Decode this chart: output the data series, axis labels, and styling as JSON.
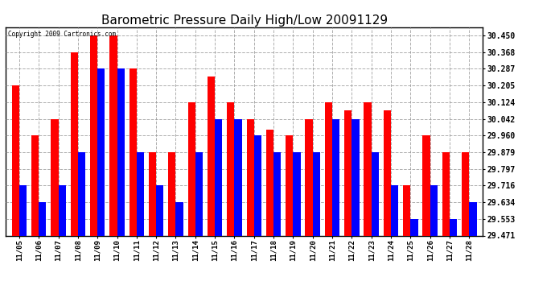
{
  "title": "Barometric Pressure Daily High/Low 20091129",
  "copyright_text": "Copyright 2009 Cartronics.com",
  "dates": [
    "11/05",
    "11/06",
    "11/07",
    "11/08",
    "11/09",
    "11/10",
    "11/11",
    "11/12",
    "11/13",
    "11/14",
    "11/15",
    "11/16",
    "11/17",
    "11/18",
    "11/19",
    "11/20",
    "11/21",
    "11/22",
    "11/23",
    "11/24",
    "11/25",
    "11/26",
    "11/27",
    "11/28"
  ],
  "highs": [
    30.205,
    29.96,
    30.042,
    30.368,
    30.45,
    30.45,
    30.287,
    29.879,
    29.879,
    30.124,
    30.247,
    30.124,
    30.042,
    29.99,
    29.96,
    30.042,
    30.124,
    30.082,
    30.124,
    30.082,
    29.716,
    29.96,
    29.879,
    29.879
  ],
  "lows": [
    29.716,
    29.634,
    29.716,
    29.879,
    30.287,
    30.287,
    29.879,
    29.716,
    29.634,
    29.879,
    30.042,
    30.042,
    29.96,
    29.879,
    29.879,
    29.879,
    30.042,
    30.042,
    29.879,
    29.716,
    29.553,
    29.716,
    29.553,
    29.634
  ],
  "high_color": "#ff0000",
  "low_color": "#0000ff",
  "background_color": "#ffffff",
  "grid_color": "#999999",
  "title_fontsize": 11,
  "yticks": [
    29.471,
    29.553,
    29.634,
    29.716,
    29.797,
    29.879,
    29.96,
    30.042,
    30.124,
    30.205,
    30.287,
    30.368,
    30.45
  ],
  "ylim_min": 29.471,
  "ylim_max": 30.49
}
